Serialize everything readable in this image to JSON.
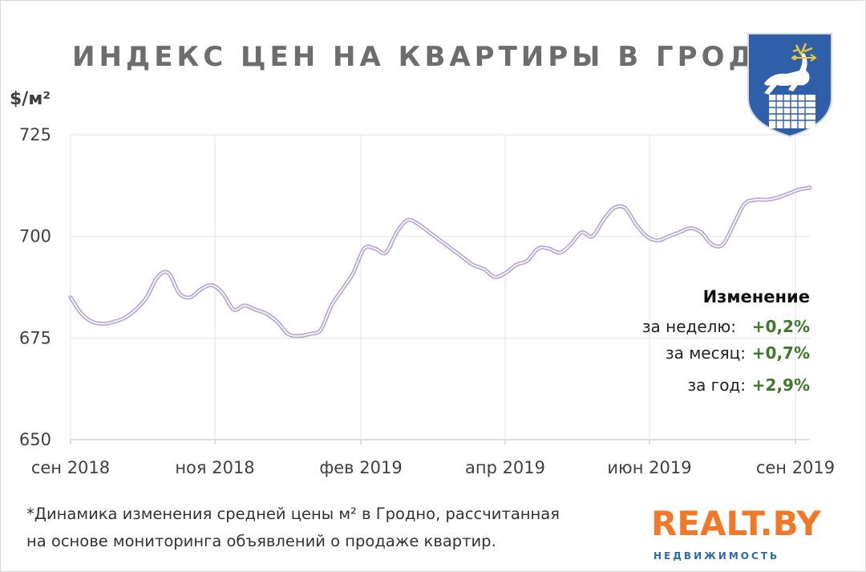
{
  "chart_data": {
    "type": "line",
    "title": "ИНДЕКС ЦЕН НА КВАРТИРЫ В ГРОДНО",
    "ylabel": "$/м²",
    "ylim": [
      650,
      725
    ],
    "yticks": [
      650,
      675,
      700,
      725
    ],
    "x_labels": [
      "сен 2018",
      "ноя 2018",
      "фев 2019",
      "апр 2019",
      "июн 2019",
      "сен 2019"
    ],
    "grid": true,
    "line_color": "#b7a6d6",
    "series": [
      {
        "values": [
          685,
          681,
          679,
          678.5,
          679,
          680,
          682,
          685,
          690,
          691,
          686,
          685,
          687,
          688,
          686,
          682,
          683,
          682,
          681,
          679,
          676,
          675.5,
          676,
          677,
          683,
          687,
          691,
          697,
          697,
          696,
          701,
          704,
          703,
          701,
          699,
          697,
          695,
          693,
          692,
          690,
          691,
          693,
          694,
          697,
          697,
          696,
          698,
          701,
          700,
          704,
          707,
          707,
          703,
          700,
          699,
          700,
          701,
          702,
          701,
          698,
          698,
          703,
          708,
          709,
          709,
          709.5,
          710.5,
          711.5,
          712
        ]
      }
    ]
  },
  "annotation": {
    "heading": "Изменение",
    "rows": [
      {
        "label": "за неделю:",
        "value": "+0,2%"
      },
      {
        "label": "за месяц:",
        "value": "+0,7%"
      },
      {
        "label": "за год:",
        "value": "+2,9%"
      }
    ]
  },
  "footnote": {
    "line1": "*Динамика  изменения  средней цены м² в Гродно, рассчитанная",
    "line2": "на основе мониторинга  объявлений  о продаже квартир."
  },
  "logo": {
    "main": "REALT.BY",
    "sub": "НЕДВИЖИМОСТЬ"
  },
  "emblem": {
    "icon": "grodno-coat-of-arms-icon"
  }
}
